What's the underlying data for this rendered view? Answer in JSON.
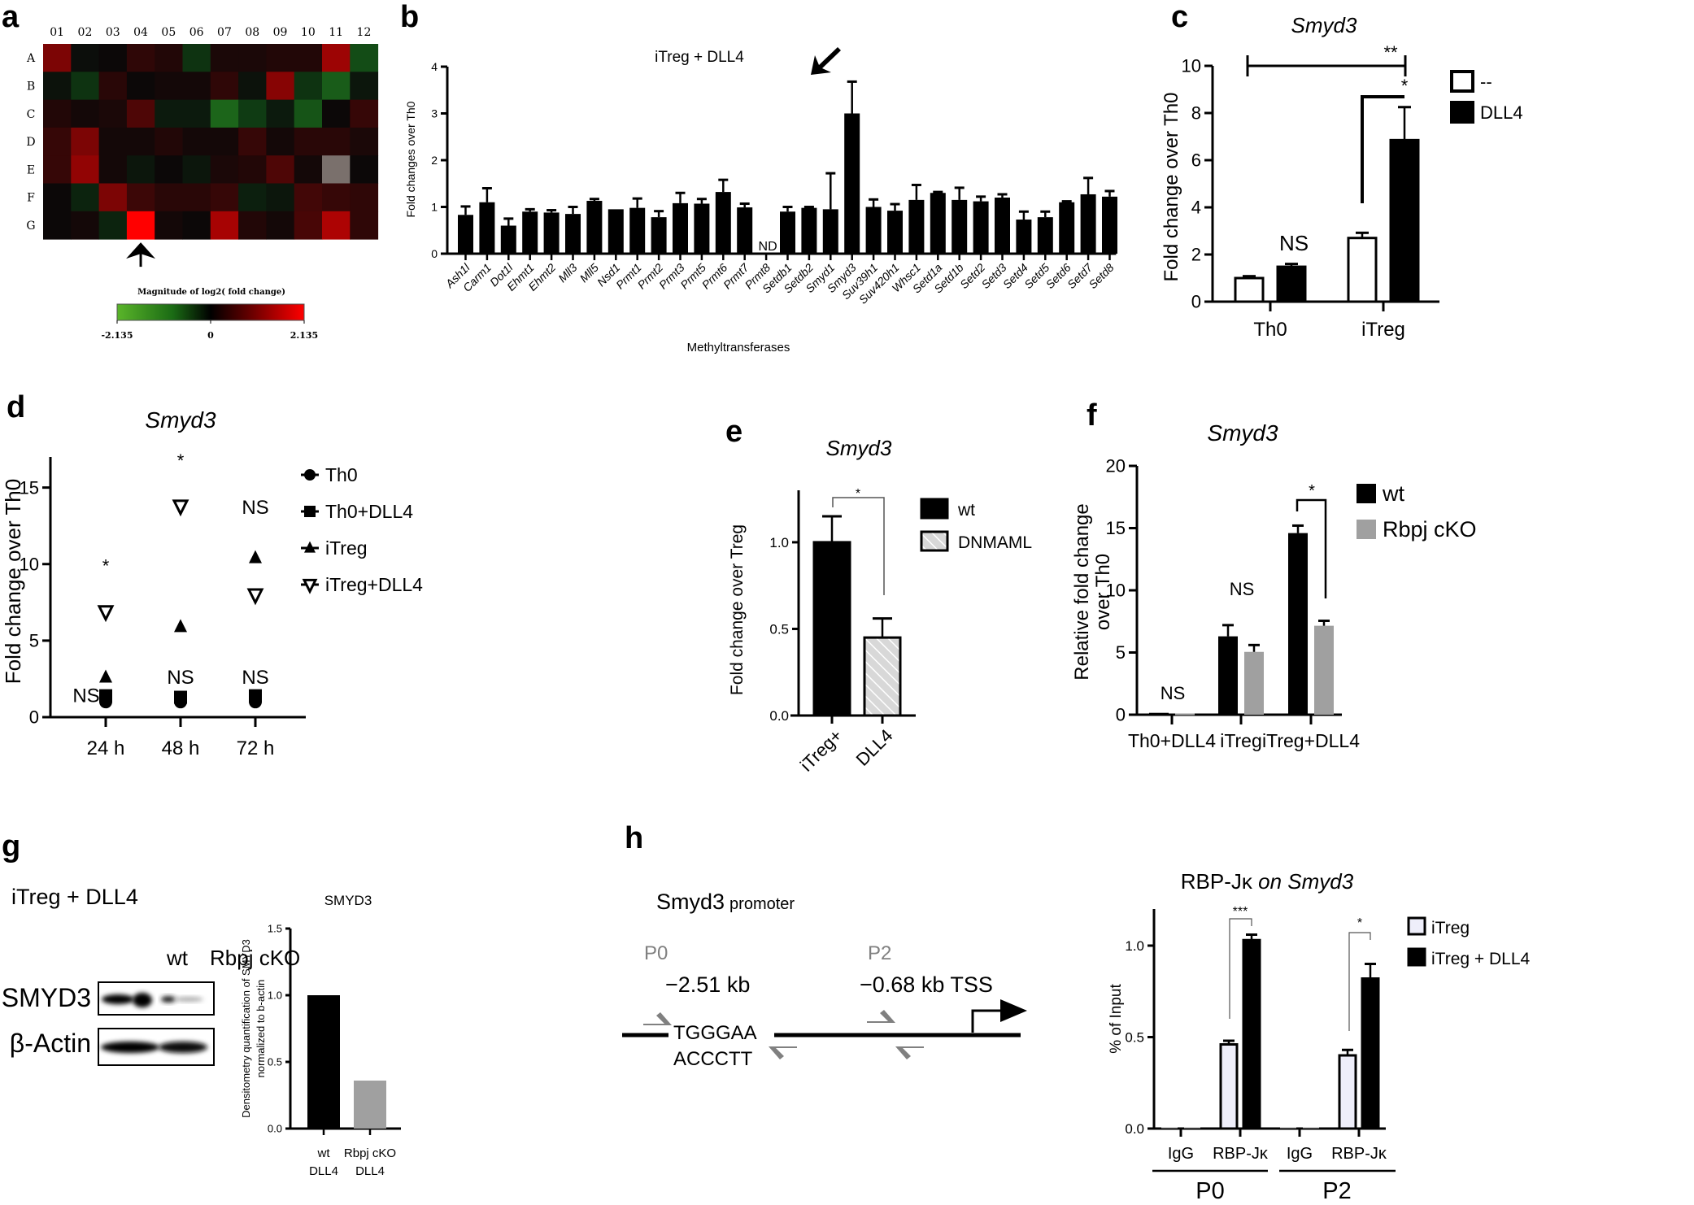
{
  "panels": {
    "a": {
      "letter": "a"
    },
    "b": {
      "letter": "b"
    },
    "c": {
      "letter": "c"
    },
    "d": {
      "letter": "d"
    },
    "e": {
      "letter": "e"
    },
    "f": {
      "letter": "f"
    },
    "g": {
      "letter": "g"
    },
    "h": {
      "letter": "h"
    }
  },
  "colors": {
    "black": "#000000",
    "gray_bar": "#a0a0a0",
    "light_lavender": "#eeeefa",
    "primer_gray": "#808080",
    "heat_green": "#55b02a",
    "heat_red": "#ff0000"
  },
  "chart_data": [
    {
      "id": "a",
      "type": "heatmap",
      "title": "",
      "columns": [
        "01",
        "02",
        "03",
        "04",
        "05",
        "06",
        "07",
        "08",
        "09",
        "10",
        "11",
        "12"
      ],
      "rows": [
        "A",
        "B",
        "C",
        "D",
        "E",
        "F",
        "G"
      ],
      "colorbar_label": "Magnitude of log2( fold change)",
      "colorbar_ticks": [
        "-2.135",
        "0",
        "2.135"
      ],
      "range": [
        -2.135,
        2.135
      ],
      "values": [
        [
          0.9,
          -0.05,
          0.0,
          0.25,
          0.15,
          -0.5,
          0.1,
          0.1,
          0.15,
          0.15,
          1.2,
          -0.8
        ],
        [
          -0.1,
          -0.5,
          0.2,
          0.0,
          0.05,
          0.05,
          0.25,
          -0.1,
          1.0,
          -0.5,
          -1.0,
          -0.15
        ],
        [
          0.15,
          0.05,
          0.1,
          0.5,
          -0.2,
          -0.2,
          -1.1,
          -0.6,
          -0.2,
          -0.9,
          0.0,
          0.3
        ],
        [
          0.3,
          0.9,
          0.05,
          0.05,
          0.15,
          0.05,
          0.05,
          0.3,
          0.05,
          0.2,
          0.2,
          0.1
        ],
        [
          0.3,
          1.1,
          0.05,
          -0.15,
          0.0,
          -0.15,
          0.1,
          0.15,
          0.5,
          0.05,
          null,
          0.0
        ],
        [
          0.0,
          -0.3,
          0.9,
          0.35,
          0.2,
          0.2,
          0.3,
          -0.25,
          -0.15,
          0.4,
          0.3,
          0.25
        ],
        [
          0.0,
          0.05,
          -0.3,
          2.135,
          0.05,
          0.0,
          1.3,
          0.15,
          0.05,
          0.45,
          1.35,
          0.25
        ]
      ],
      "highlight": {
        "row": "G",
        "column": "04",
        "annotation": "arrow"
      }
    },
    {
      "id": "b",
      "type": "bar",
      "title": "iTreg + DLL4",
      "xlabel": "Methyltransferases",
      "ylabel": "Fold changes over Th0",
      "ylim": [
        0,
        4
      ],
      "yticks": [
        0,
        1,
        2,
        3,
        4
      ],
      "categories": [
        "Ash1l",
        "Carm1",
        "Dot1l",
        "Ehmt1",
        "Ehmt2",
        "Mll3",
        "Mll5",
        "Nsd1",
        "Prmt1",
        "Prmt2",
        "Prmt3",
        "Prmt5",
        "Prmt6",
        "Prmt7",
        "Prmt8",
        "Setdb1",
        "Setdb2",
        "Smyd1",
        "Smyd3",
        "Suv39h1",
        "Suv420h1",
        "Whsc1",
        "Setd1a",
        "Setd1b",
        "Setd2",
        "Setd3",
        "Setd4",
        "Setd5",
        "Setd6",
        "Setd7",
        "Setd8"
      ],
      "values": [
        0.83,
        1.1,
        0.6,
        0.9,
        0.88,
        0.85,
        1.13,
        0.95,
        0.98,
        0.78,
        1.08,
        1.07,
        1.32,
        0.99,
        null,
        0.9,
        0.98,
        0.95,
        3.0,
        1.0,
        0.92,
        1.15,
        1.3,
        1.15,
        1.12,
        1.2,
        0.73,
        0.78,
        1.1,
        1.27,
        1.22
      ],
      "errors": [
        0.18,
        0.3,
        0.15,
        0.05,
        0.05,
        0.15,
        0.04,
        0.0,
        0.2,
        0.13,
        0.22,
        0.1,
        0.26,
        0.08,
        null,
        0.1,
        0.02,
        0.77,
        0.68,
        0.16,
        0.14,
        0.32,
        0.02,
        0.26,
        0.1,
        0.07,
        0.17,
        0.12,
        0.02,
        0.35,
        0.12
      ],
      "annotations": [
        {
          "category": "Prmt8",
          "text": "ND"
        },
        {
          "category": "Smyd3",
          "text": "arrow"
        }
      ]
    },
    {
      "id": "c",
      "type": "bar",
      "title": "Smyd3",
      "ylabel": "Fold change over Th0",
      "ylim": [
        0,
        10
      ],
      "yticks": [
        0,
        2,
        4,
        6,
        8,
        10
      ],
      "categories": [
        "Th0",
        "iTreg"
      ],
      "series": [
        {
          "name": "--",
          "values": [
            1.0,
            2.7
          ],
          "errors": [
            0.08,
            0.22
          ],
          "fill": "#ffffff"
        },
        {
          "name": "DLL4",
          "values": [
            1.48,
            6.85
          ],
          "errors": [
            0.12,
            1.4
          ],
          "fill": "#000000"
        }
      ],
      "annotations": [
        {
          "text": "NS",
          "group": "Th0"
        },
        {
          "text": "*",
          "between": "iTreg -- vs DLL4"
        },
        {
          "text": "**",
          "between": "Th0 vs iTreg DLL4"
        }
      ],
      "legend_position": "right"
    },
    {
      "id": "d",
      "type": "scatter",
      "title": "Smyd3",
      "ylabel": "Fold change over Th0",
      "ylim": [
        0,
        17
      ],
      "yticks": [
        0,
        5,
        10,
        15
      ],
      "x": [
        "24 h",
        "48 h",
        "72 h"
      ],
      "series": [
        {
          "name": "Th0",
          "marker": "circle",
          "values": [
            1.0,
            1.0,
            1.0
          ]
        },
        {
          "name": "Th0+DLL4",
          "marker": "square",
          "values": [
            1.4,
            1.3,
            1.4
          ]
        },
        {
          "name": "iTreg",
          "marker": "triangle-up",
          "values": [
            2.6,
            5.9,
            10.4
          ]
        },
        {
          "name": "iTreg+DLL4",
          "marker": "triangle-down-open",
          "values": [
            6.9,
            13.8,
            8.0
          ]
        }
      ],
      "annotations": [
        {
          "x": "24 h",
          "text": "*",
          "y": 9.9
        },
        {
          "x": "24 h",
          "text": "NS",
          "y": 1.4,
          "side": "left"
        },
        {
          "x": "48 h",
          "text": "*",
          "y": 16.8
        },
        {
          "x": "48 h",
          "text": "NS",
          "y": 2.6
        },
        {
          "x": "72 h",
          "text": "NS",
          "y": 13.7
        },
        {
          "x": "72 h",
          "text": "NS",
          "y": 2.6
        }
      ],
      "legend_position": "right"
    },
    {
      "id": "e",
      "type": "bar",
      "title": "Smyd3",
      "ylabel": "Fold change over Treg",
      "ylim": [
        0,
        1.3
      ],
      "yticks": [
        0.0,
        0.5,
        1.0
      ],
      "ytick_labels": [
        "0.0",
        "0.5",
        "1.0"
      ],
      "categories": [
        "iTreg+",
        "DLL4"
      ],
      "series": [
        {
          "name": "wt",
          "values": [
            1.0
          ],
          "errors": [
            0.15
          ],
          "fill": "#000000"
        },
        {
          "name": "DNMAML",
          "values": [
            0.45
          ],
          "errors": [
            0.11
          ],
          "fill": "hatched"
        }
      ],
      "annotations": [
        {
          "text": "*",
          "between": "wt vs DNMAML"
        }
      ],
      "legend_position": "right"
    },
    {
      "id": "f",
      "type": "bar",
      "title": "Smyd3",
      "ylabel": "Relative fold change over Th0",
      "ylim": [
        0,
        20
      ],
      "yticks": [
        0,
        5,
        10,
        15,
        20
      ],
      "categories": [
        "Th0+DLL4",
        "iTreg",
        "iTreg+DLL4"
      ],
      "series": [
        {
          "name": "wt",
          "values": [
            0.15,
            6.3,
            14.6
          ],
          "errors": [
            0.05,
            0.9,
            0.6
          ],
          "fill": "#000000"
        },
        {
          "name": "Rbpj cKO",
          "values": [
            0.1,
            5.05,
            7.15
          ],
          "errors": [
            0.03,
            0.55,
            0.4
          ],
          "fill": "#a0a0a0"
        }
      ],
      "annotations": [
        {
          "text": "NS",
          "group": "Th0+DLL4"
        },
        {
          "text": "NS",
          "group": "iTreg"
        },
        {
          "text": "*",
          "group": "iTreg+DLL4"
        }
      ],
      "legend_position": "right"
    },
    {
      "id": "g",
      "type": "bar",
      "title": "SMYD3",
      "ylabel": "Densitometry quantification of SMYD3 normalized to b-actin",
      "ylim": [
        0,
        1.5
      ],
      "yticks": [
        0.0,
        0.5,
        1.0,
        1.5
      ],
      "ytick_labels": [
        "0.0",
        "0.5",
        "1.0",
        "1.5"
      ],
      "categories": [
        "wt DLL4",
        "Rbpj cKO DLL4"
      ],
      "values": [
        1.0,
        0.36
      ],
      "fills": [
        "#000000",
        "#a0a0a0"
      ]
    },
    {
      "id": "h",
      "type": "bar",
      "title": "RBP-Jκ on Smyd3",
      "ylabel": "% of Input",
      "ylim": [
        0,
        1.2
      ],
      "yticks": [
        0.0,
        0.5,
        1.0
      ],
      "ytick_labels": [
        "0.0",
        "0.5",
        "1.0"
      ],
      "categories": [
        "IgG",
        "RBP-Jκ",
        "IgG",
        "RBP-Jκ"
      ],
      "groups": [
        "P0",
        "P2"
      ],
      "series": [
        {
          "name": "iTreg",
          "values": [
            0.0,
            0.46,
            0.0,
            0.4
          ],
          "errors": [
            0,
            0.02,
            0,
            0.03
          ],
          "fill": "#eeeefa"
        },
        {
          "name": "iTreg + DLL4",
          "values": [
            0.0,
            1.03,
            0.0,
            0.82
          ],
          "errors": [
            0,
            0.03,
            0,
            0.08
          ],
          "fill": "#000000"
        }
      ],
      "annotations": [
        {
          "text": "***",
          "group": "P0 RBP-Jκ"
        },
        {
          "text": "*",
          "group": "P2 RBP-Jκ"
        }
      ],
      "legend_position": "right"
    }
  ],
  "western_blot": {
    "condition": "iTreg + DLL4",
    "lanes": [
      "wt",
      "Rbpj cKO"
    ],
    "bands": [
      "SMYD3",
      "β-Actin"
    ]
  },
  "promoter_diagram": {
    "title": "Smyd3",
    "title_suffix": "promoter",
    "sites": [
      {
        "label": "P0",
        "position": "−2.51 kb",
        "seq_top": "TGGGAA",
        "seq_bottom": "ACCCTT"
      },
      {
        "label": "P2",
        "position": "−0.68 kb"
      }
    ],
    "tss_label": "TSS"
  }
}
